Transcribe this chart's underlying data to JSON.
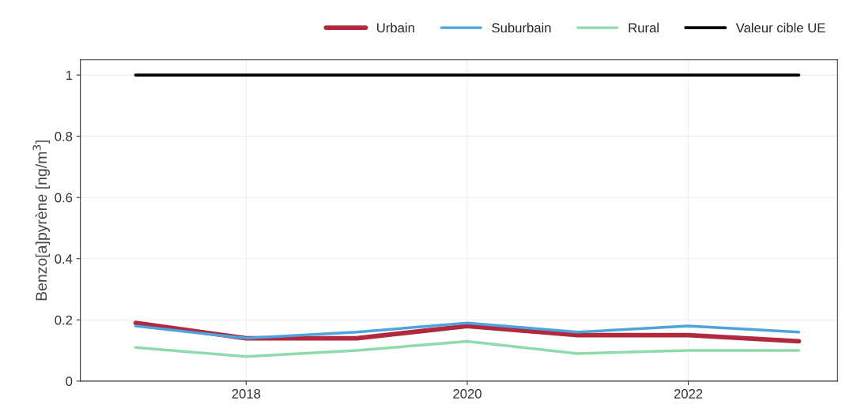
{
  "chart_data": {
    "type": "line",
    "ylabel": "Benzo[a]pyrène [ng/m$^{3}$]",
    "x": [
      2017,
      2018,
      2019,
      2020,
      2021,
      2022,
      2023
    ],
    "series": [
      {
        "name": "Urbain",
        "color": "#b2293d",
        "values": [
          0.19,
          0.14,
          0.14,
          0.18,
          0.15,
          0.15,
          0.13
        ]
      },
      {
        "name": "Suburbain",
        "color": "#4fa3dc",
        "values": [
          0.18,
          0.14,
          0.16,
          0.19,
          0.16,
          0.18,
          0.16
        ]
      },
      {
        "name": "Rural",
        "color": "#8ddcaa",
        "values": [
          0.11,
          0.08,
          0.1,
          0.13,
          0.09,
          0.1,
          0.1
        ]
      },
      {
        "name": "Valeur cible UE",
        "color": "#000000",
        "values": [
          1,
          1,
          1,
          1,
          1,
          1,
          1
        ]
      }
    ],
    "xlim": [
      2016.5,
      2023.35
    ],
    "xticks": [
      2018,
      2020,
      2022
    ],
    "ylim": [
      0,
      1.05
    ],
    "yticks": [
      0,
      0.2,
      0.4,
      0.6,
      0.8,
      1
    ],
    "grid": true,
    "legend": "top right",
    "line_style": "solid",
    "marker": "none"
  }
}
